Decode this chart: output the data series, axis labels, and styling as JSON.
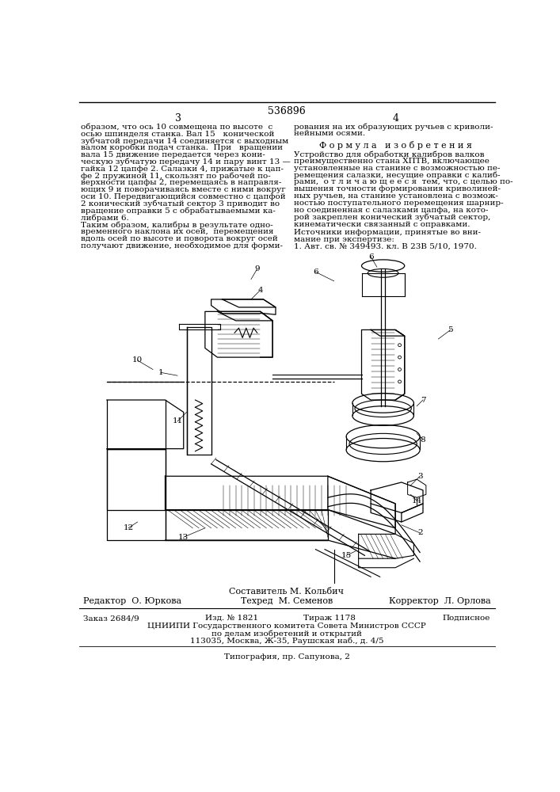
{
  "patent_number": "536896",
  "page_col_left": "3",
  "page_col_right": "4",
  "text_left": "образом, что ось 10 совмещена по высоте  с\nосью шпинделя станка. Вал 15   конической\nзубчатой передачи 14 соединяется с выходным\nвалом коробки подач станка.  При   вращении\nвала 15 движение передается через кони-\nческую зубчатую передачу 14 и пару винт 13 —\nгайка 12 цапфе 2. Салазки 4, прижатые к цап-\nфе 2 пружиной 11, скользят по рабочей по-\nверхности цапфы 2, перемещаясь в направля-\nющих 9 и поворачиваясь вместе с ними вокруг\nоси 10. Передвигающийся совместно с цапфой\n2 конический зубчатый сектор 3 приводит во\nвращение оправки 5 с обрабатываемыми ка-\nлибрами 6.",
  "text_left2": "Таким образом, калибры в результате одно-\nвременного наклона их осей,  перемещения\nвдоль осей по высоте и поворота вокруг осей\nполучают движение, необходимое для форми-",
  "text_right": "рования на их образующих ручьев с криволи-\nнейными осями.",
  "formula_title": "Ф о р м у л а   и з о б р е т е н и я",
  "formula_text": "Устройство для обработки калибров валков\nпреимущественно стана ХПТВ, включающее\nустановленные на станине с возможностью пе-\nремещения салазки, несущие оправки с калиб-\nрами,  о т л и ч а ю щ е е с я  тем, что, с целью по-\nвышения точности формирования криволиней-\nных ручьев, на станине установлена с возмож-\nностью поступательного перемещения шарнир-\nно соединенная с салазками цапфа, на кото-\nрой закреплен конический зубчатый сектор,\nкинематически связанный с оправками.",
  "sources_title": "Источники информации, принятые во вни-\nмание при экспертизе:",
  "sources_text": "1. Авт. св. № 349493. кл. В 23В 5/10, 1970.",
  "footer_compiler": "Составитель М. Кольбич",
  "footer_editor": "Редактор  О. Юркова",
  "footer_techred": "Техред  М. Семенов",
  "footer_corrector": "Корректор  Л. Орлова",
  "footer_order": "Заказ 2684/9",
  "footer_izd": "Изд. № 1821",
  "footer_tirazh": "Тираж 1178",
  "footer_podpisnoe": "Подписное",
  "footer_org": "ЦНИИПИ Государственного комитета Совета Министров СССР",
  "footer_org2": "по делам изобретений и открытий",
  "footer_addr": "113035, Москва, Ж-35, Раушская наб., д. 4/5",
  "footer_print": "Типография, пр. Сапунова, 2",
  "bg_color": "#ffffff",
  "text_color": "#000000",
  "line_color": "#000000",
  "labels": [
    [
      "1",
      148,
      455
    ],
    [
      "2",
      570,
      718
    ],
    [
      "3",
      570,
      625
    ],
    [
      "4",
      310,
      320
    ],
    [
      "5",
      620,
      385
    ],
    [
      "6",
      400,
      290
    ],
    [
      "6",
      490,
      265
    ],
    [
      "7",
      575,
      500
    ],
    [
      "8",
      575,
      565
    ],
    [
      "9",
      305,
      285
    ],
    [
      "10",
      110,
      435
    ],
    [
      "11",
      175,
      535
    ],
    [
      "12",
      95,
      710
    ],
    [
      "13",
      185,
      725
    ],
    [
      "14",
      565,
      665
    ],
    [
      "15",
      450,
      755
    ]
  ]
}
